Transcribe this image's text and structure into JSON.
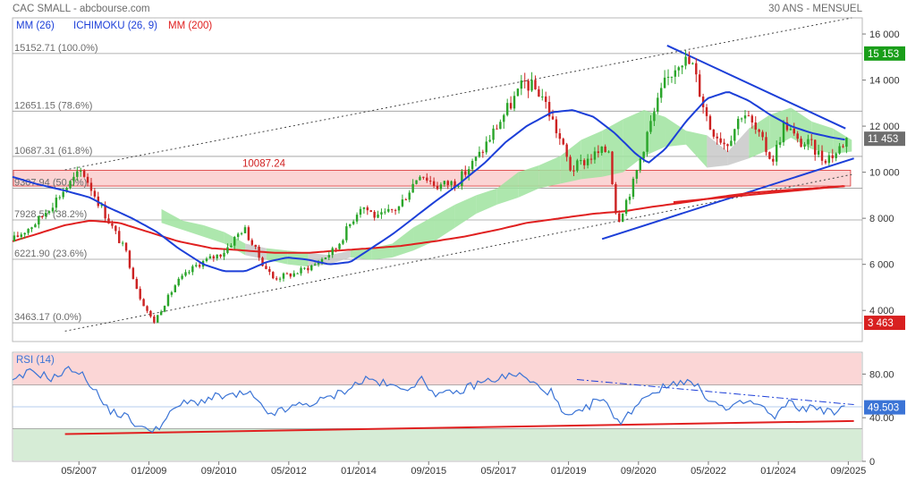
{
  "header": {
    "left_title": "CAC SMALL - abcbourse.com",
    "right_title": "30 ANS - MENSUEL"
  },
  "legend": [
    {
      "label": "MM (26)",
      "color": "#1c3fd8"
    },
    {
      "label": "ICHIMOKU (26, 9)",
      "color": "#1c3fd8"
    },
    {
      "label": "MM (200)",
      "color": "#e02020"
    }
  ],
  "colors": {
    "candle_up": "#2aa52a",
    "candle_down": "#cc2222",
    "mm26": "#1c3fd8",
    "mm200": "#e02020",
    "cloud_bull": "#9fe39f",
    "cloud_bear": "#c8c8c8",
    "trend_line": "#1c3fd8",
    "support_line": "#e02020",
    "zone_fill": "#fbd4d4",
    "rsi_line": "#3b74d6",
    "rsi_overbought_fill": "#fbd6d6",
    "rsi_oversold_fill": "#d6ecd6",
    "last_price_badge": "#6e6e6e",
    "high_badge": "#1a9e1a",
    "low_badge": "#d82020",
    "rsi_badge": "#3b74d6"
  },
  "chart_data": [
    {
      "type": "candlestick",
      "title": "CAC SMALL",
      "x_tick_labels": [
        "05/2007",
        "01/2009",
        "09/2010",
        "05/2012",
        "01/2014",
        "09/2015",
        "05/2017",
        "01/2019",
        "09/2020",
        "05/2022",
        "01/2024",
        "09/2025"
      ],
      "x_tick_months": [
        2007.333,
        2009.0,
        2010.667,
        2012.333,
        2014.0,
        2015.667,
        2017.333,
        2019.0,
        2020.667,
        2022.333,
        2024.0,
        2025.667
      ],
      "x_range": [
        2005.75,
        2026.0
      ],
      "y_ticks": [
        4000,
        6000,
        8000,
        10000,
        12000,
        14000,
        16000
      ],
      "y_tick_labels": [
        "4 000",
        "6 000",
        "8 000",
        "10 000",
        "12 000",
        "14 000",
        "16 000"
      ],
      "ylim": [
        2650,
        16700
      ],
      "fibonacci_levels": [
        {
          "label": "15152.71  (100.0%)",
          "value": 15152.71
        },
        {
          "label": "12651.15  (78.6%)",
          "value": 12651.15
        },
        {
          "label": "10687.31  (61.8%)",
          "value": 10687.31
        },
        {
          "label": "9307.94  (50.0%)",
          "value": 9307.94
        },
        {
          "label": "7928.57  (38.2%)",
          "value": 7928.57
        },
        {
          "label": "6221.90  (23.6%)",
          "value": 6221.9
        },
        {
          "label": "3463.17  (0.0%)",
          "value": 3463.17
        }
      ],
      "annotations": [
        {
          "label": "10087.24",
          "value": 10087.24
        }
      ],
      "resistance_zone": [
        9400,
        10087.24
      ],
      "price_badges": [
        {
          "label": "15 153",
          "value": 15152.71,
          "kind": "high"
        },
        {
          "label": "11 453",
          "value": 11453,
          "kind": "last"
        },
        {
          "label": "3 463",
          "value": 3463.17,
          "kind": "low"
        }
      ],
      "anchors": [
        [
          2005.75,
          7000
        ],
        [
          2006.4,
          7900
        ],
        [
          2007.0,
          9200
        ],
        [
          2007.45,
          10087
        ],
        [
          2007.9,
          8500
        ],
        [
          2008.5,
          6500
        ],
        [
          2008.8,
          4700
        ],
        [
          2009.15,
          3463
        ],
        [
          2009.7,
          5200
        ],
        [
          2010.2,
          6000
        ],
        [
          2010.8,
          6500
        ],
        [
          2011.3,
          7600
        ],
        [
          2011.7,
          6200
        ],
        [
          2012.0,
          5400
        ],
        [
          2012.5,
          5600
        ],
        [
          2013.0,
          6000
        ],
        [
          2013.5,
          6700
        ],
        [
          2014.1,
          8600
        ],
        [
          2014.5,
          8000
        ],
        [
          2015.0,
          8500
        ],
        [
          2015.5,
          10000
        ],
        [
          2015.9,
          9400
        ],
        [
          2016.4,
          9600
        ],
        [
          2016.9,
          10700
        ],
        [
          2017.5,
          12500
        ],
        [
          2018.0,
          13900
        ],
        [
          2018.4,
          13400
        ],
        [
          2018.8,
          11600
        ],
        [
          2019.1,
          10100
        ],
        [
          2019.6,
          10700
        ],
        [
          2020.0,
          11000
        ],
        [
          2020.2,
          7800
        ],
        [
          2020.6,
          9600
        ],
        [
          2020.9,
          11600
        ],
        [
          2021.3,
          13700
        ],
        [
          2021.7,
          15000
        ],
        [
          2022.0,
          14600
        ],
        [
          2022.4,
          12000
        ],
        [
          2022.8,
          11200
        ],
        [
          2023.2,
          12700
        ],
        [
          2023.5,
          11800
        ],
        [
          2023.9,
          10500
        ],
        [
          2024.2,
          12200
        ],
        [
          2024.5,
          11300
        ],
        [
          2024.8,
          11200
        ],
        [
          2025.1,
          10600
        ],
        [
          2025.4,
          10800
        ],
        [
          2025.65,
          11453
        ]
      ],
      "mm26_anchors": [
        [
          2005.75,
          9800
        ],
        [
          2006.3,
          9500
        ],
        [
          2007.0,
          9200
        ],
        [
          2007.6,
          8900
        ],
        [
          2008.0,
          8500
        ],
        [
          2008.6,
          8000
        ],
        [
          2009.2,
          7400
        ],
        [
          2009.7,
          6700
        ],
        [
          2010.3,
          6000
        ],
        [
          2010.8,
          5700
        ],
        [
          2011.3,
          5700
        ],
        [
          2011.8,
          6100
        ],
        [
          2012.3,
          6300
        ],
        [
          2012.8,
          6200
        ],
        [
          2013.3,
          6000
        ],
        [
          2013.8,
          6100
        ],
        [
          2014.3,
          6700
        ],
        [
          2014.8,
          7300
        ],
        [
          2015.3,
          8000
        ],
        [
          2015.8,
          8700
        ],
        [
          2016.4,
          9500
        ],
        [
          2017.0,
          10400
        ],
        [
          2017.5,
          11300
        ],
        [
          2018.0,
          12000
        ],
        [
          2018.6,
          12600
        ],
        [
          2019.1,
          12700
        ],
        [
          2019.6,
          12400
        ],
        [
          2020.1,
          11700
        ],
        [
          2020.6,
          10800
        ],
        [
          2020.9,
          10400
        ],
        [
          2021.3,
          11000
        ],
        [
          2021.8,
          12200
        ],
        [
          2022.3,
          13200
        ],
        [
          2022.8,
          13500
        ],
        [
          2023.3,
          13100
        ],
        [
          2023.8,
          12500
        ],
        [
          2024.3,
          12000
        ],
        [
          2024.8,
          11700
        ],
        [
          2025.3,
          11500
        ],
        [
          2025.65,
          11400
        ]
      ],
      "mm200_anchors": [
        [
          2005.75,
          7000
        ],
        [
          2006.3,
          7300
        ],
        [
          2007.0,
          7700
        ],
        [
          2007.6,
          7900
        ],
        [
          2008.3,
          7800
        ],
        [
          2009.0,
          7400
        ],
        [
          2009.7,
          7000
        ],
        [
          2010.5,
          6700
        ],
        [
          2011.3,
          6600
        ],
        [
          2012.0,
          6500
        ],
        [
          2012.8,
          6500
        ],
        [
          2013.5,
          6600
        ],
        [
          2014.3,
          6700
        ],
        [
          2015.0,
          6800
        ],
        [
          2015.8,
          7000
        ],
        [
          2016.5,
          7200
        ],
        [
          2017.3,
          7500
        ],
        [
          2018.0,
          7800
        ],
        [
          2018.8,
          8000
        ],
        [
          2019.6,
          8200
        ],
        [
          2020.3,
          8300
        ],
        [
          2021.0,
          8500
        ],
        [
          2021.8,
          8700
        ],
        [
          2022.5,
          8900
        ],
        [
          2023.3,
          9100
        ],
        [
          2024.0,
          9200
        ],
        [
          2024.8,
          9300
        ],
        [
          2025.65,
          9400
        ]
      ],
      "cloud_upper_anchors": [
        [
          2009.3,
          8400
        ],
        [
          2009.8,
          7900
        ],
        [
          2010.3,
          7700
        ],
        [
          2010.8,
          7400
        ],
        [
          2011.3,
          6900
        ],
        [
          2011.8,
          6700
        ],
        [
          2012.3,
          6600
        ],
        [
          2012.8,
          6500
        ],
        [
          2013.3,
          6400
        ],
        [
          2013.8,
          6600
        ],
        [
          2014.3,
          6700
        ],
        [
          2014.8,
          6900
        ],
        [
          2015.3,
          7600
        ],
        [
          2015.8,
          8100
        ],
        [
          2016.3,
          8600
        ],
        [
          2016.8,
          9000
        ],
        [
          2017.3,
          9300
        ],
        [
          2017.8,
          10000
        ],
        [
          2018.3,
          10300
        ],
        [
          2018.8,
          10700
        ],
        [
          2019.3,
          11400
        ],
        [
          2019.8,
          11800
        ],
        [
          2020.3,
          12300
        ],
        [
          2020.8,
          12700
        ],
        [
          2021.3,
          12400
        ],
        [
          2021.8,
          11800
        ],
        [
          2022.3,
          11600
        ],
        [
          2022.8,
          10900
        ],
        [
          2023.3,
          11900
        ],
        [
          2023.8,
          12500
        ],
        [
          2024.3,
          12800
        ],
        [
          2024.8,
          12200
        ],
        [
          2025.3,
          11900
        ],
        [
          2025.75,
          11400
        ]
      ],
      "cloud_lower_anchors": [
        [
          2009.3,
          7800
        ],
        [
          2009.8,
          7500
        ],
        [
          2010.3,
          7200
        ],
        [
          2010.8,
          6900
        ],
        [
          2011.3,
          6400
        ],
        [
          2011.8,
          6200
        ],
        [
          2012.3,
          6000
        ],
        [
          2012.8,
          5900
        ],
        [
          2013.3,
          6000
        ],
        [
          2013.8,
          6300
        ],
        [
          2014.3,
          6200
        ],
        [
          2014.8,
          6300
        ],
        [
          2015.3,
          6600
        ],
        [
          2015.8,
          7000
        ],
        [
          2016.3,
          7600
        ],
        [
          2016.8,
          8200
        ],
        [
          2017.3,
          8600
        ],
        [
          2017.8,
          8900
        ],
        [
          2018.3,
          9300
        ],
        [
          2018.8,
          9500
        ],
        [
          2019.3,
          9700
        ],
        [
          2019.8,
          9800
        ],
        [
          2020.3,
          10000
        ],
        [
          2020.8,
          10700
        ],
        [
          2021.3,
          11100
        ],
        [
          2021.8,
          11200
        ],
        [
          2022.3,
          10200
        ],
        [
          2022.8,
          10300
        ],
        [
          2023.3,
          10600
        ],
        [
          2023.8,
          11000
        ],
        [
          2024.3,
          11500
        ],
        [
          2024.8,
          11000
        ],
        [
          2025.3,
          10800
        ],
        [
          2025.75,
          10900
        ]
      ],
      "trendlines": [
        {
          "kind": "channel-upper",
          "style": "dotted",
          "from": [
            2007.0,
            10100
          ],
          "to": [
            2025.75,
            16700
          ]
        },
        {
          "kind": "channel-lower",
          "style": "dotted",
          "from": [
            2007.0,
            3100
          ],
          "to": [
            2025.75,
            9900
          ]
        },
        {
          "kind": "resistance",
          "style": "solid",
          "from": [
            2021.35,
            15500
          ],
          "to": [
            2025.6,
            11900
          ]
        },
        {
          "kind": "support",
          "style": "solid",
          "from": [
            2019.8,
            7100
          ],
          "to": [
            2025.8,
            10600
          ]
        },
        {
          "kind": "support-2",
          "style": "solid",
          "from": [
            2021.5,
            8700
          ],
          "to": [
            2025.55,
            9400
          ]
        }
      ]
    },
    {
      "type": "line",
      "title": "RSI (14)",
      "series": [
        {
          "name": "RSI (14)",
          "last_value": 49.503
        }
      ],
      "y_ticks": [
        0,
        40,
        80
      ],
      "y_tick_labels": [
        "0",
        "40.00",
        "80.00"
      ],
      "ylim": [
        0,
        100
      ],
      "overbought": 70,
      "oversold": 30,
      "badge": {
        "label": "49.503",
        "value": 49.503
      },
      "rsi_anchors": [
        [
          2005.75,
          72
        ],
        [
          2006.2,
          83
        ],
        [
          2006.7,
          76
        ],
        [
          2007.2,
          86
        ],
        [
          2007.6,
          72
        ],
        [
          2008.0,
          48
        ],
        [
          2008.5,
          40
        ],
        [
          2008.9,
          28
        ],
        [
          2009.3,
          33
        ],
        [
          2009.7,
          52
        ],
        [
          2010.2,
          55
        ],
        [
          2010.6,
          59
        ],
        [
          2011.0,
          60
        ],
        [
          2011.4,
          62
        ],
        [
          2011.8,
          44
        ],
        [
          2012.2,
          46
        ],
        [
          2012.6,
          52
        ],
        [
          2013.0,
          54
        ],
        [
          2013.4,
          60
        ],
        [
          2013.8,
          68
        ],
        [
          2014.2,
          76
        ],
        [
          2014.6,
          71
        ],
        [
          2015.0,
          66
        ],
        [
          2015.5,
          74
        ],
        [
          2015.9,
          61
        ],
        [
          2016.3,
          62
        ],
        [
          2016.8,
          71
        ],
        [
          2017.3,
          76
        ],
        [
          2017.8,
          80
        ],
        [
          2018.2,
          70
        ],
        [
          2018.6,
          63
        ],
        [
          2018.9,
          40
        ],
        [
          2019.3,
          44
        ],
        [
          2019.7,
          58
        ],
        [
          2020.0,
          48
        ],
        [
          2020.25,
          34
        ],
        [
          2020.6,
          52
        ],
        [
          2020.9,
          62
        ],
        [
          2021.3,
          68
        ],
        [
          2021.7,
          75
        ],
        [
          2022.0,
          70
        ],
        [
          2022.4,
          56
        ],
        [
          2022.8,
          46
        ],
        [
          2023.2,
          55
        ],
        [
          2023.6,
          51
        ],
        [
          2023.9,
          38
        ],
        [
          2024.2,
          54
        ],
        [
          2024.6,
          48
        ],
        [
          2024.9,
          50
        ],
        [
          2025.3,
          44
        ],
        [
          2025.65,
          49.5
        ]
      ],
      "trendlines": [
        {
          "kind": "support",
          "style": "solid",
          "from": [
            2007.0,
            25
          ],
          "to": [
            2025.8,
            37
          ]
        },
        {
          "kind": "resistance",
          "style": "dash-dot",
          "from": [
            2019.2,
            75
          ],
          "to": [
            2025.8,
            52
          ]
        }
      ]
    }
  ]
}
